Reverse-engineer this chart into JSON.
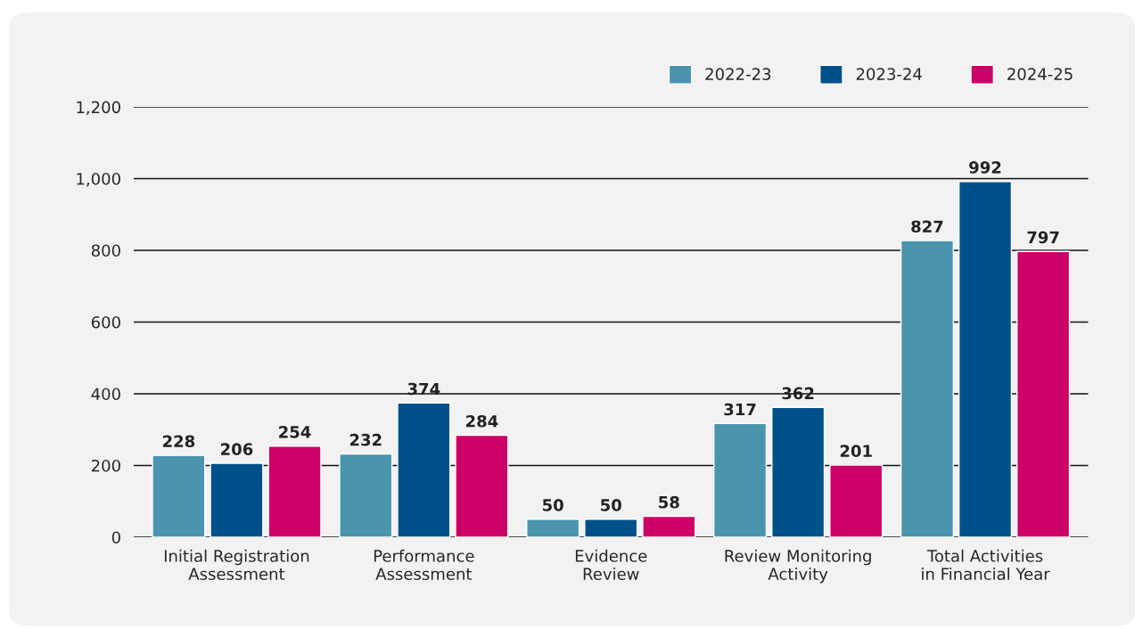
{
  "chart_data": {
    "type": "bar",
    "categories": [
      "Initial Registration Assessment",
      "Performance Assessment",
      "Evidence Review",
      "Review Monitoring Activity",
      "Total Activities in Financial Year"
    ],
    "series": [
      {
        "name": "2022-23",
        "color": "#4a94ad",
        "values": [
          228,
          232,
          50,
          317,
          827
        ]
      },
      {
        "name": "2023-24",
        "color": "#00508a",
        "values": [
          206,
          374,
          50,
          362,
          992
        ]
      },
      {
        "name": "2024-25",
        "color": "#cc0066",
        "values": [
          254,
          284,
          58,
          201,
          797
        ]
      }
    ],
    "ylim": [
      0,
      1200
    ],
    "yticks": [
      0,
      200,
      400,
      600,
      800,
      {
        "value": 1000,
        "label": "1,000"
      },
      {
        "value": 1200,
        "label": "1,200"
      }
    ],
    "grid": "y",
    "legend": "top right",
    "data_labels": true
  }
}
